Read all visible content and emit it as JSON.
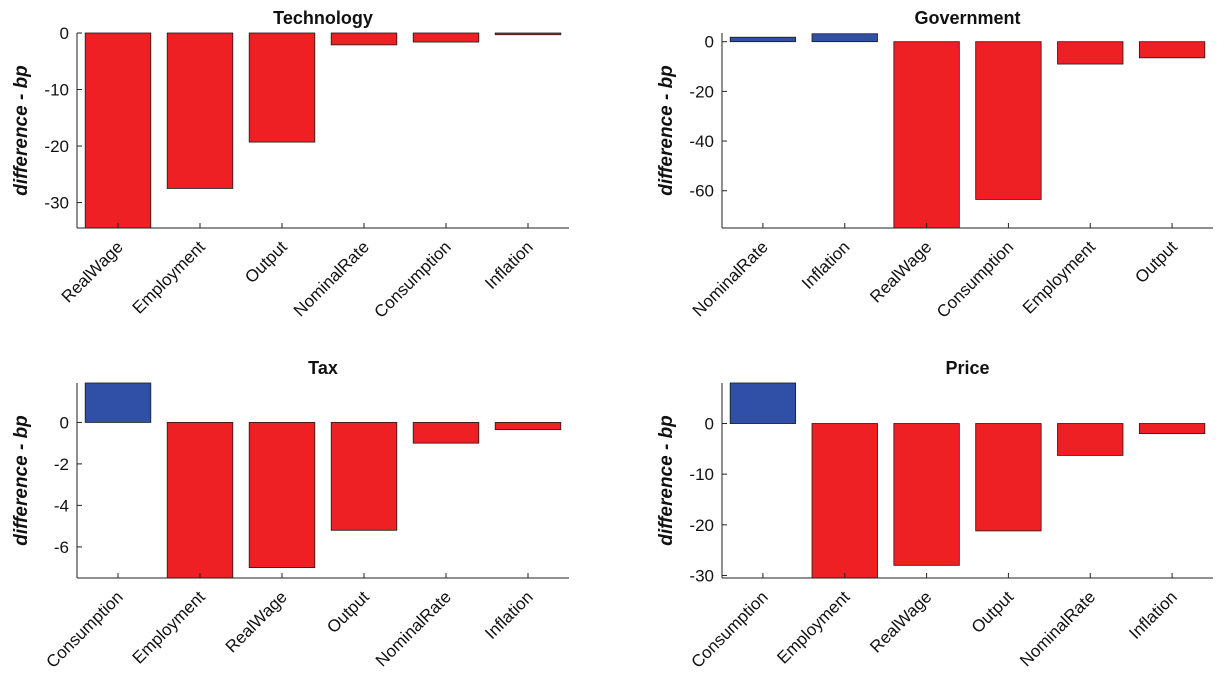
{
  "colors": {
    "positive": "#3050a8",
    "negative": "#ee2024",
    "axis": "#222222",
    "text": "#111111"
  },
  "chart_data": [
    {
      "type": "bar",
      "title": "Technology",
      "ylabel": "difference - bp",
      "xlabel": "",
      "categories": [
        "RealWage",
        "Employment",
        "Output",
        "NominalRate",
        "Consumption",
        "Inflation"
      ],
      "values": [
        -34.5,
        -27.5,
        -19.3,
        -2.1,
        -1.6,
        -0.3
      ],
      "ylim": [
        -34.5,
        0
      ],
      "yticks": [
        0,
        -10,
        -20,
        -30
      ],
      "ytick_labels": [
        "0",
        "-10",
        "-20",
        "-30"
      ],
      "grid": false
    },
    {
      "type": "bar",
      "title": "Government",
      "ylabel": "difference - bp",
      "xlabel": "",
      "categories": [
        "NominalRate",
        "Inflation",
        "RealWage",
        "Consumption",
        "Employment",
        "Output"
      ],
      "values": [
        1.8,
        3.2,
        -75.0,
        -63.5,
        -9.0,
        -6.5
      ],
      "ylim": [
        -75,
        3.5
      ],
      "yticks": [
        0,
        -20,
        -40,
        -60
      ],
      "ytick_labels": [
        "0",
        "-20",
        "-40",
        "-60"
      ],
      "grid": false
    },
    {
      "type": "bar",
      "title": "Tax",
      "ylabel": "difference - bp",
      "xlabel": "",
      "categories": [
        "Consumption",
        "Employment",
        "RealWage",
        "Output",
        "NominalRate",
        "Inflation"
      ],
      "values": [
        1.9,
        -7.5,
        -7.0,
        -5.2,
        -1.0,
        -0.35
      ],
      "ylim": [
        -7.5,
        1.9
      ],
      "yticks": [
        0,
        -2,
        -4,
        -6
      ],
      "ytick_labels": [
        "0",
        "-2",
        "-4",
        "-6"
      ],
      "grid": false
    },
    {
      "type": "bar",
      "title": "Price",
      "ylabel": "difference - bp",
      "xlabel": "",
      "categories": [
        "Consumption",
        "Employment",
        "RealWage",
        "Output",
        "NominalRate",
        "Inflation"
      ],
      "values": [
        8.0,
        -30.5,
        -28.0,
        -21.2,
        -6.3,
        -2.0
      ],
      "ylim": [
        -30.5,
        8
      ],
      "yticks": [
        0,
        -10,
        -20,
        -30
      ],
      "ytick_labels": [
        "0",
        "-10",
        "-20",
        "-30"
      ],
      "grid": false
    }
  ]
}
